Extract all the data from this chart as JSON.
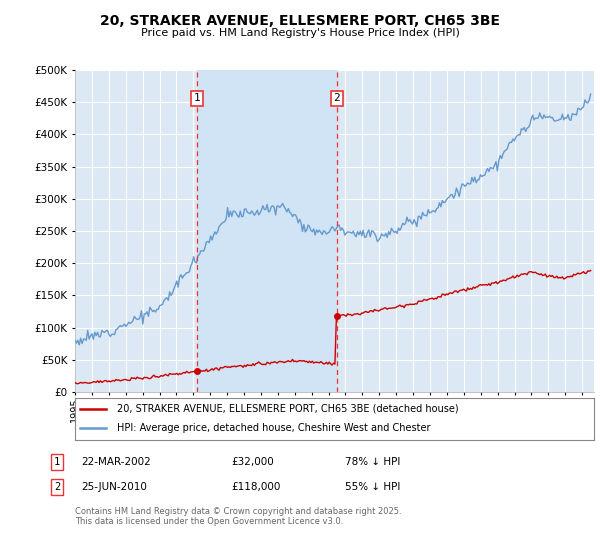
{
  "title_line1": "20, STRAKER AVENUE, ELLESMERE PORT, CH65 3BE",
  "title_line2": "Price paid vs. HM Land Registry's House Price Index (HPI)",
  "ylim": [
    0,
    500000
  ],
  "yticks": [
    0,
    50000,
    100000,
    150000,
    200000,
    250000,
    300000,
    350000,
    400000,
    450000,
    500000
  ],
  "plot_bg": "#dce8f4",
  "grid_color": "#ffffff",
  "sale1_date": 2002.22,
  "sale1_price": 32000,
  "sale2_date": 2010.48,
  "sale2_price": 118000,
  "legend_line1": "20, STRAKER AVENUE, ELLESMERE PORT, CH65 3BE (detached house)",
  "legend_line2": "HPI: Average price, detached house, Cheshire West and Chester",
  "footer": "Contains HM Land Registry data © Crown copyright and database right 2025.\nThis data is licensed under the Open Government Licence v3.0.",
  "red_color": "#cc0000",
  "blue_color": "#6699cc",
  "dashed_color": "#ee3333",
  "shade_color": "#d0e4f5"
}
